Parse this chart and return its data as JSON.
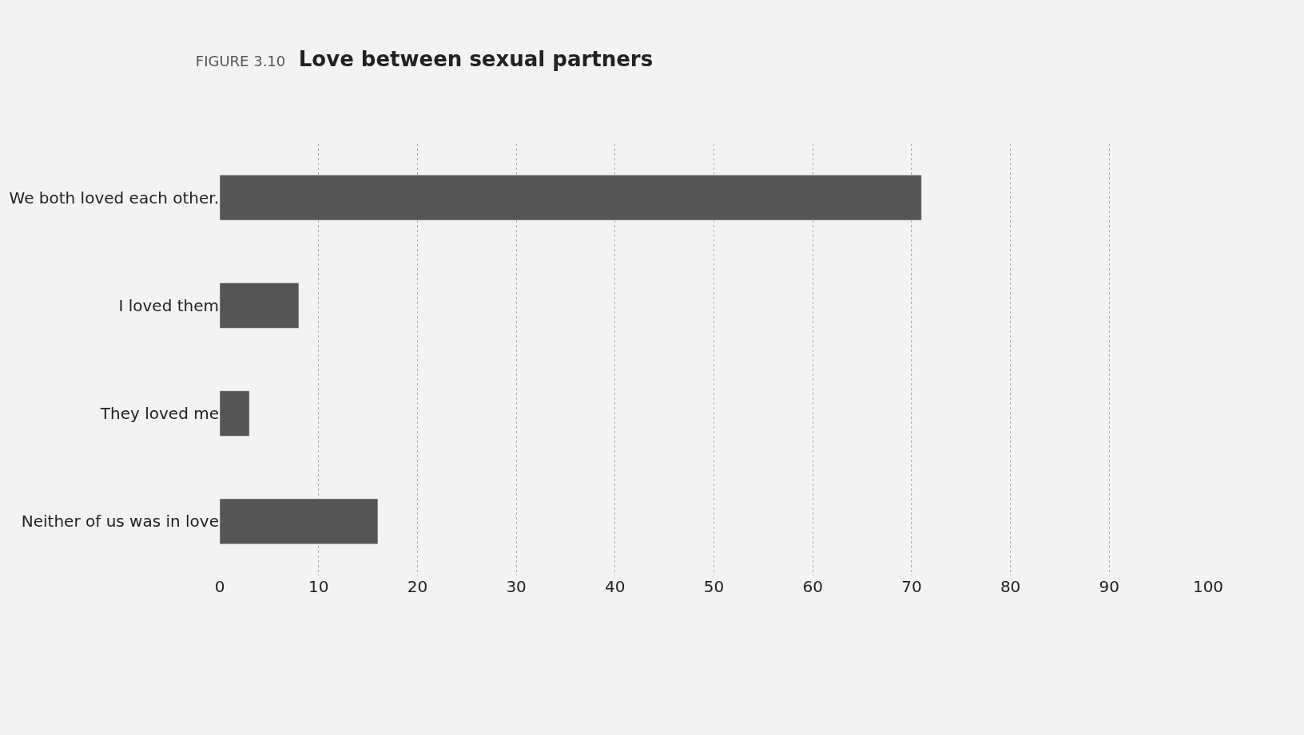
{
  "chart_data": {
    "type": "bar",
    "orientation": "horizontal",
    "title": "FIGURE 3.10 Love between sexual partners",
    "categories": [
      "We both loved each other.",
      "I loved them",
      "They loved me",
      "Neither of us was in love"
    ],
    "values": [
      71,
      8,
      3,
      16
    ],
    "color": "#555555",
    "xlim": [
      0,
      100
    ],
    "xticks": [
      0,
      10,
      20,
      30,
      40,
      50,
      60,
      70,
      80,
      90,
      100
    ],
    "grid": "x"
  }
}
